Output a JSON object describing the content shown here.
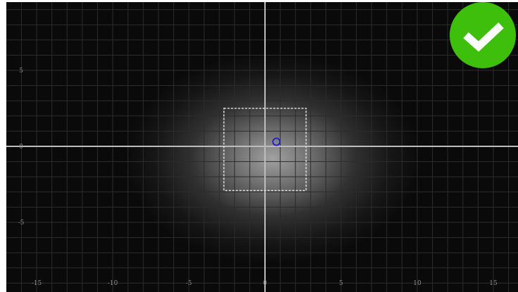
{
  "chart_data": {
    "type": "scatter",
    "xlim": [
      -17,
      16.5
    ],
    "ylim": [
      -9.5,
      9.5
    ],
    "grid": true,
    "x_ticks": [
      {
        "value": -15,
        "label": "-15"
      },
      {
        "value": -10,
        "label": "-10"
      },
      {
        "value": -5,
        "label": "-5"
      },
      {
        "value": 0,
        "label": "0"
      },
      {
        "value": 5,
        "label": "5"
      },
      {
        "value": 10,
        "label": "10"
      },
      {
        "value": 15,
        "label": "15"
      }
    ],
    "y_ticks": [
      {
        "value": 5,
        "label": "5"
      },
      {
        "value": 0,
        "label": "0"
      },
      {
        "value": -5,
        "label": "-5"
      }
    ],
    "target_region": {
      "x_min": -2.7,
      "x_max": 2.7,
      "y_min": -2.9,
      "y_max": 2.5
    },
    "points": [
      {
        "x": 0.75,
        "y": 0.3
      }
    ],
    "glow_center": {
      "x": 0.5,
      "y": -0.8
    },
    "colors": {
      "background": "#0a0a0a",
      "grid": "#2c2c2c",
      "axis": "#bdbdbd",
      "point": "#1e1ecc",
      "region": "#dddddd",
      "glow": "#ffffff"
    }
  },
  "status": {
    "icon": "checkmark-icon",
    "color": "#3dbf0c"
  }
}
